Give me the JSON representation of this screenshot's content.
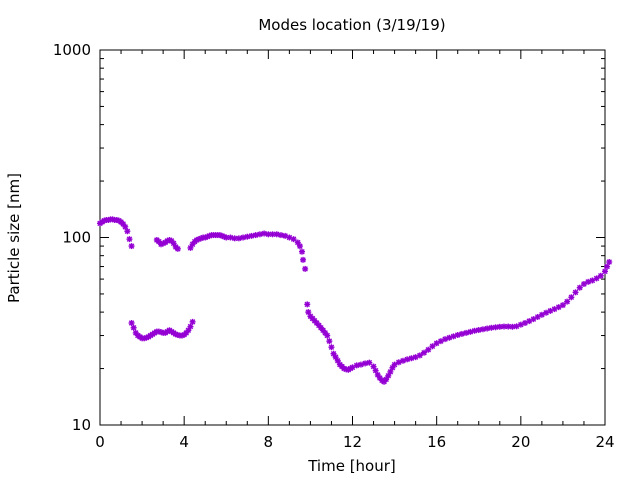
{
  "chart_data": {
    "type": "scatter",
    "title": "Modes location (3/19/19)",
    "xlabel": "Time [hour]",
    "ylabel": "Particle size [nm]",
    "xlim": [
      0,
      24
    ],
    "ylim": [
      10,
      1000
    ],
    "y_scale": "log",
    "grid": false,
    "x_ticks": [
      0,
      4,
      8,
      12,
      16,
      20,
      24
    ],
    "x_tick_labels": [
      "0",
      "4",
      "8",
      "12",
      "16",
      "20",
      "24"
    ],
    "y_ticks": [
      10,
      100,
      1000
    ],
    "y_tick_labels": [
      "10",
      "100",
      "1000"
    ],
    "marker_color": "#9400d3",
    "series": [
      {
        "values": [
          [
            0.0,
            119
          ],
          [
            0.1,
            121
          ],
          [
            0.2,
            123
          ],
          [
            0.3,
            124
          ],
          [
            0.4,
            124
          ],
          [
            0.5,
            125
          ],
          [
            0.6,
            125
          ],
          [
            0.7,
            124
          ],
          [
            0.8,
            124
          ],
          [
            0.9,
            123
          ],
          [
            1.0,
            121
          ],
          [
            1.1,
            118
          ],
          [
            1.2,
            114
          ],
          [
            1.3,
            108
          ],
          [
            1.4,
            98
          ],
          [
            1.5,
            90
          ],
          [
            2.7,
            97
          ],
          [
            2.8,
            95
          ],
          [
            2.9,
            92
          ],
          [
            3.0,
            93
          ],
          [
            3.1,
            94
          ],
          [
            3.2,
            96
          ],
          [
            3.3,
            97
          ],
          [
            3.4,
            96
          ],
          [
            3.5,
            93
          ],
          [
            3.6,
            89
          ],
          [
            3.7,
            87
          ],
          [
            4.3,
            88
          ],
          [
            4.4,
            92
          ],
          [
            4.5,
            95
          ],
          [
            4.6,
            97
          ],
          [
            4.7,
            98
          ],
          [
            4.8,
            99
          ],
          [
            4.9,
            100
          ],
          [
            5.0,
            100
          ],
          [
            5.1,
            101
          ],
          [
            5.2,
            102
          ],
          [
            5.3,
            103
          ],
          [
            5.4,
            103
          ],
          [
            5.5,
            103
          ],
          [
            5.6,
            103
          ],
          [
            5.7,
            103
          ],
          [
            5.8,
            102
          ],
          [
            5.9,
            101
          ],
          [
            6.0,
            100
          ],
          [
            6.2,
            100
          ],
          [
            6.4,
            99
          ],
          [
            6.6,
            99
          ],
          [
            6.8,
            100
          ],
          [
            7.0,
            101
          ],
          [
            7.2,
            102
          ],
          [
            7.4,
            103
          ],
          [
            7.6,
            104
          ],
          [
            7.8,
            105
          ],
          [
            8.0,
            104
          ],
          [
            8.2,
            104
          ],
          [
            8.4,
            104
          ],
          [
            8.6,
            103
          ],
          [
            8.8,
            102
          ],
          [
            9.0,
            100
          ],
          [
            9.2,
            98
          ],
          [
            9.4,
            94
          ],
          [
            9.5,
            90
          ],
          [
            9.6,
            84
          ],
          [
            9.65,
            76
          ],
          [
            9.75,
            68
          ]
        ]
      },
      {
        "values": [
          [
            1.5,
            35
          ],
          [
            1.6,
            33
          ],
          [
            1.7,
            31
          ],
          [
            1.8,
            30
          ],
          [
            1.9,
            29.5
          ],
          [
            2.0,
            29
          ],
          [
            2.1,
            29
          ],
          [
            2.2,
            29.2
          ],
          [
            2.3,
            29.5
          ],
          [
            2.4,
            30
          ],
          [
            2.5,
            30.5
          ],
          [
            2.6,
            31
          ],
          [
            2.7,
            31.5
          ],
          [
            2.8,
            31.5
          ],
          [
            2.9,
            31.3
          ],
          [
            3.0,
            31
          ],
          [
            3.1,
            31
          ],
          [
            3.2,
            31.5
          ],
          [
            3.3,
            32
          ],
          [
            3.4,
            31.5
          ],
          [
            3.5,
            31
          ],
          [
            3.6,
            30.5
          ],
          [
            3.7,
            30.2
          ],
          [
            3.8,
            30
          ],
          [
            3.9,
            30
          ],
          [
            4.0,
            30.3
          ],
          [
            4.1,
            31
          ],
          [
            4.2,
            32
          ],
          [
            4.3,
            33.5
          ],
          [
            4.4,
            35.5
          ],
          [
            9.85,
            44
          ],
          [
            9.9,
            40
          ],
          [
            10.0,
            38
          ],
          [
            10.1,
            37
          ],
          [
            10.2,
            36
          ],
          [
            10.3,
            35
          ],
          [
            10.4,
            34
          ],
          [
            10.5,
            33
          ],
          [
            10.6,
            32
          ],
          [
            10.7,
            31
          ],
          [
            10.8,
            30
          ],
          [
            10.9,
            28
          ],
          [
            11.0,
            26
          ],
          [
            11.1,
            24
          ],
          [
            11.2,
            23
          ],
          [
            11.3,
            22
          ],
          [
            11.4,
            21
          ],
          [
            11.5,
            20.5
          ],
          [
            11.6,
            20
          ],
          [
            11.7,
            19.8
          ],
          [
            11.8,
            19.7
          ],
          [
            11.9,
            20
          ],
          [
            12.0,
            20.3
          ],
          [
            12.2,
            20.8
          ],
          [
            12.4,
            21
          ],
          [
            12.6,
            21.3
          ],
          [
            12.8,
            21.5
          ],
          [
            13.0,
            20.5
          ],
          [
            13.1,
            19.5
          ],
          [
            13.2,
            18.5
          ],
          [
            13.3,
            17.8
          ],
          [
            13.4,
            17.3
          ],
          [
            13.5,
            17
          ],
          [
            13.6,
            17.5
          ],
          [
            13.7,
            18.3
          ],
          [
            13.8,
            19.2
          ],
          [
            13.9,
            20.2
          ],
          [
            14.0,
            21
          ],
          [
            14.2,
            21.6
          ],
          [
            14.4,
            22
          ],
          [
            14.6,
            22.4
          ],
          [
            14.8,
            22.7
          ],
          [
            15.0,
            23
          ],
          [
            15.2,
            23.5
          ],
          [
            15.4,
            24.3
          ],
          [
            15.6,
            25.2
          ],
          [
            15.8,
            26.3
          ],
          [
            16.0,
            27.3
          ],
          [
            16.2,
            28
          ],
          [
            16.4,
            28.7
          ],
          [
            16.6,
            29.2
          ],
          [
            16.8,
            29.7
          ],
          [
            17.0,
            30.2
          ],
          [
            17.2,
            30.6
          ],
          [
            17.4,
            31
          ],
          [
            17.6,
            31.4
          ],
          [
            17.8,
            31.8
          ],
          [
            18.0,
            32.1
          ],
          [
            18.2,
            32.4
          ],
          [
            18.4,
            32.7
          ],
          [
            18.6,
            33
          ],
          [
            18.8,
            33.2
          ],
          [
            19.0,
            33.4
          ],
          [
            19.2,
            33.5
          ],
          [
            19.4,
            33.5
          ],
          [
            19.6,
            33.4
          ],
          [
            19.8,
            33.6
          ],
          [
            20.0,
            34.3
          ],
          [
            20.2,
            35
          ],
          [
            20.4,
            35.8
          ],
          [
            20.6,
            36.7
          ],
          [
            20.8,
            37.7
          ],
          [
            21.0,
            38.7
          ],
          [
            21.2,
            39.7
          ],
          [
            21.4,
            40.6
          ],
          [
            21.6,
            41.5
          ],
          [
            21.8,
            42.5
          ],
          [
            22.0,
            43.6
          ],
          [
            22.2,
            45.5
          ],
          [
            22.4,
            48
          ],
          [
            22.6,
            51
          ],
          [
            22.8,
            54
          ],
          [
            23.0,
            56.5
          ],
          [
            23.2,
            58
          ],
          [
            23.4,
            59
          ],
          [
            23.6,
            60.5
          ],
          [
            23.8,
            62.5
          ],
          [
            24.0,
            66
          ],
          [
            24.1,
            70
          ],
          [
            24.2,
            74
          ]
        ]
      }
    ]
  }
}
